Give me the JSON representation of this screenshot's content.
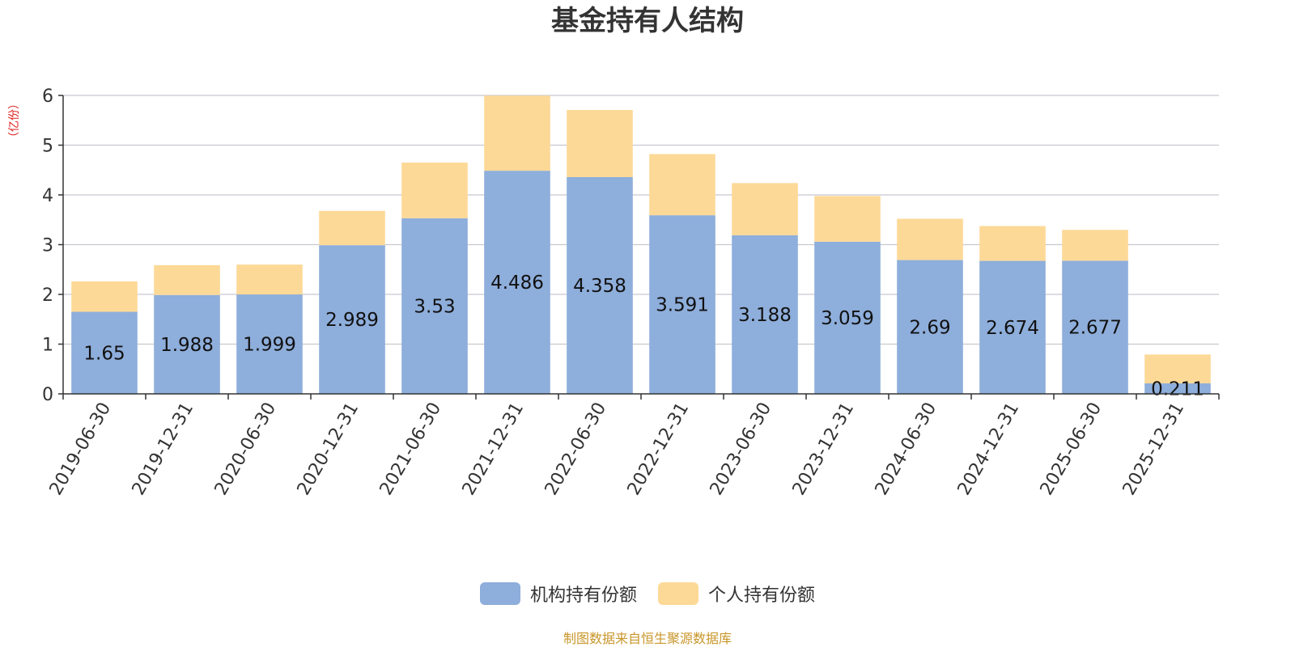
{
  "chart_data": {
    "type": "bar",
    "stacked": true,
    "title": "基金持有人结构",
    "ylabel": "（亿份）",
    "xlabel": "",
    "ylim": [
      0,
      6
    ],
    "yticks": [
      "0",
      "1",
      "2",
      "3",
      "4",
      "5",
      "6"
    ],
    "categories": [
      "2019-06-30",
      "2019-12-31",
      "2020-06-30",
      "2020-12-31",
      "2021-06-30",
      "2021-12-31",
      "2022-06-30",
      "2022-12-31",
      "2023-06-30",
      "2023-12-31",
      "2024-06-30",
      "2024-12-31",
      "2025-06-30",
      "2025-12-31"
    ],
    "series": [
      {
        "name": "机构持有份额",
        "color": "#8eaedb",
        "values": [
          1.65,
          1.988,
          1.999,
          2.989,
          3.53,
          4.486,
          4.358,
          3.591,
          3.188,
          3.059,
          2.69,
          2.674,
          2.677,
          0.211
        ],
        "labels": [
          "1.65",
          "1.988",
          "1.999",
          "2.989",
          "3.53",
          "4.486",
          "4.358",
          "3.591",
          "3.188",
          "3.059",
          "2.69",
          "2.674",
          "2.677",
          "0.211"
        ]
      },
      {
        "name": "个人持有份额",
        "color": "#fdd998",
        "values": [
          0.61,
          0.6,
          0.6,
          0.69,
          1.12,
          1.51,
          1.35,
          1.23,
          1.05,
          0.92,
          0.83,
          0.7,
          0.62,
          0.58
        ]
      }
    ],
    "legend_position": "bottom",
    "grid": true
  },
  "footer": {
    "source": "制图数据来自恒生聚源数据库"
  },
  "colors": {
    "title": "#333333",
    "axis": "#333333",
    "grid": "#c8c8d0",
    "unit": "#e02020",
    "source": "#c8962a"
  }
}
